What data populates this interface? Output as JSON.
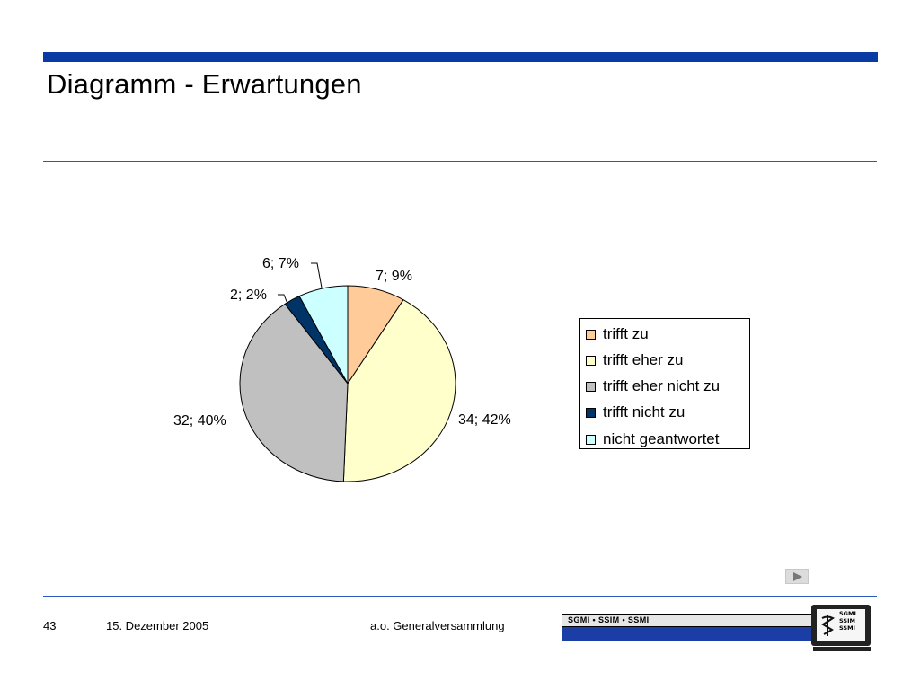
{
  "slide": {
    "title": "Diagramm - Erwartungen",
    "page_number": "43",
    "date": "15. Dezember 2005",
    "event": "a.o. Generalversammlung"
  },
  "logo": {
    "banner_text": "SGMI • SSIM • SSMI",
    "monitor_lines": [
      "SGMI",
      "SSIM",
      "SSMI"
    ]
  },
  "colors": {
    "top_bar": "#0a3aa3",
    "footer_rule": "#2a59c4"
  },
  "chart_data": {
    "type": "pie",
    "title": "",
    "legend_position": "right",
    "slices": [
      {
        "name": "trifft zu",
        "value": 7,
        "percent": 9,
        "label": "7; 9%",
        "color": "#ffcc99"
      },
      {
        "name": "trifft eher zu",
        "value": 34,
        "percent": 42,
        "label": "34; 42%",
        "color": "#ffffcc"
      },
      {
        "name": "trifft eher nicht zu",
        "value": 32,
        "percent": 40,
        "label": "32; 40%",
        "color": "#c0c0c0"
      },
      {
        "name": "trifft nicht zu",
        "value": 2,
        "percent": 2,
        "label": "2; 2%",
        "color": "#003366"
      },
      {
        "name": "nicht geantwortet",
        "value": 6,
        "percent": 7,
        "label": "6; 7%",
        "color": "#ccffff"
      }
    ]
  }
}
